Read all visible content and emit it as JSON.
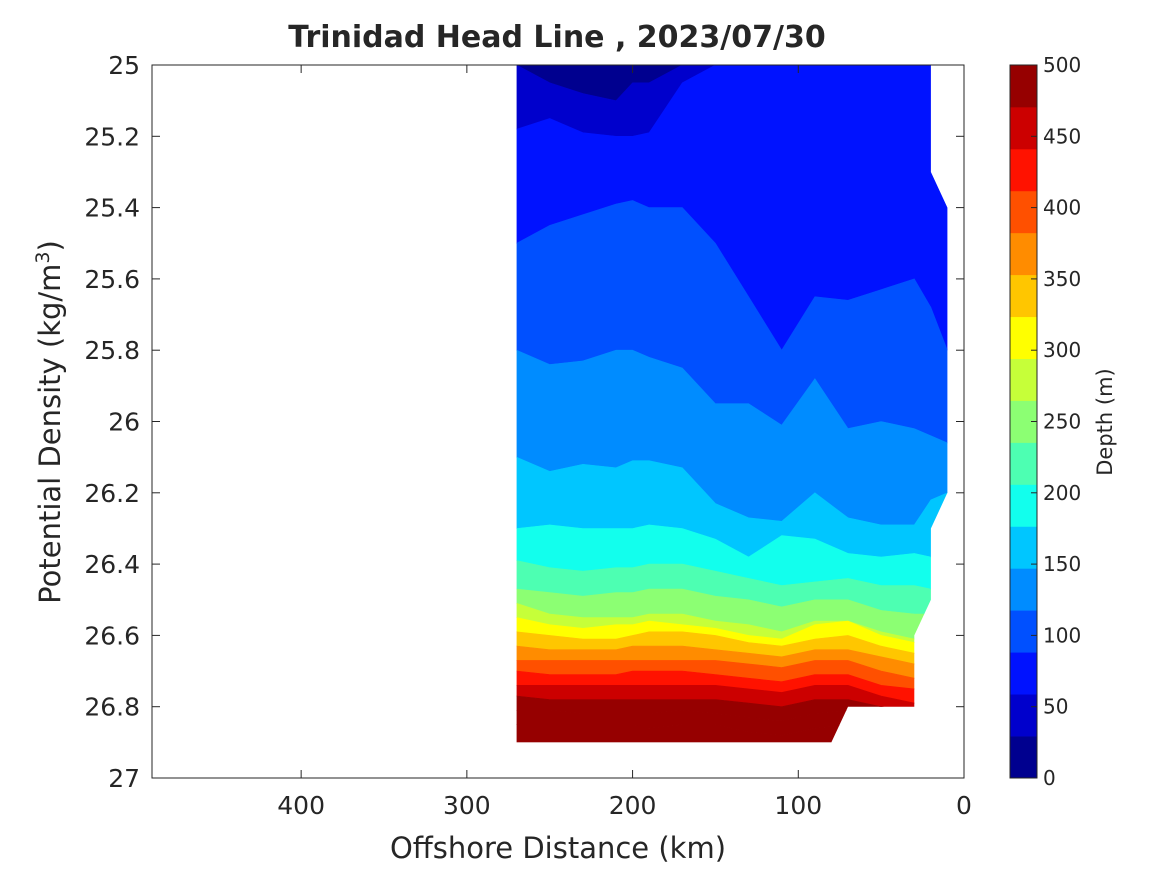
{
  "chart_data": {
    "type": "contourf",
    "title": "Trinidad Head Line , 2023/07/30",
    "xlabel": "Offshore Distance (km)",
    "ylabel_main": "Potential Density (kg/m",
    "ylabel_sup": "3",
    "ylabel_close": ")",
    "colorbar_label": "Depth (m)",
    "x_reversed": true,
    "y_reversed": true,
    "xlim": [
      0,
      490
    ],
    "ylim": [
      25,
      27
    ],
    "xticks": [
      {
        "value": 400,
        "label": "400"
      },
      {
        "value": 300,
        "label": "300"
      },
      {
        "value": 200,
        "label": "200"
      },
      {
        "value": 100,
        "label": "100"
      },
      {
        "value": 0,
        "label": "0"
      }
    ],
    "yticks": [
      {
        "value": 25,
        "label": "25"
      },
      {
        "value": 25.2,
        "label": "25.2"
      },
      {
        "value": 25.4,
        "label": "25.4"
      },
      {
        "value": 25.6,
        "label": "25.6"
      },
      {
        "value": 25.8,
        "label": "25.8"
      },
      {
        "value": 26,
        "label": "26"
      },
      {
        "value": 26.2,
        "label": "26.2"
      },
      {
        "value": 26.4,
        "label": "26.4"
      },
      {
        "value": 26.6,
        "label": "26.6"
      },
      {
        "value": 26.8,
        "label": "26.8"
      },
      {
        "value": 27,
        "label": "27"
      }
    ],
    "colorbar_range": [
      0,
      500
    ],
    "colorbar_ticks": [
      {
        "value": 0,
        "label": "0"
      },
      {
        "value": 50,
        "label": "50"
      },
      {
        "value": 100,
        "label": "100"
      },
      {
        "value": 150,
        "label": "150"
      },
      {
        "value": 200,
        "label": "200"
      },
      {
        "value": 250,
        "label": "250"
      },
      {
        "value": 300,
        "label": "300"
      },
      {
        "value": 350,
        "label": "350"
      },
      {
        "value": 400,
        "label": "400"
      },
      {
        "value": 450,
        "label": "450"
      },
      {
        "value": 500,
        "label": "500"
      }
    ],
    "colormap": [
      "#00008f",
      "#0000cc",
      "#0012ff",
      "#0050ff",
      "#008cff",
      "#00c6ff",
      "#12ffed",
      "#4dffb2",
      "#8cff73",
      "#c6ff39",
      "#ffff00",
      "#ffc600",
      "#ff8c00",
      "#ff5000",
      "#ff1200",
      "#cc0000",
      "#960000"
    ],
    "x": [
      270,
      250,
      230,
      210,
      200,
      190,
      170,
      150,
      130,
      110,
      90,
      70,
      50,
      30,
      20,
      10
    ],
    "level_boundaries": [
      {
        "level": 25,
        "y": [
          25.0,
          25.0,
          25.0,
          25.0,
          25.0,
          25.0,
          25.0,
          25.0,
          25.0,
          25.0,
          25.0,
          25.0,
          25.0,
          25.0,
          25.0,
          25.0
        ]
      },
      {
        "level": 50,
        "y": [
          25.0,
          25.05,
          25.08,
          25.1,
          25.05,
          25.05,
          25.0,
          25.0,
          25.0,
          25.0,
          25.0,
          25.0,
          25.0,
          25.0,
          25.0,
          25.0
        ]
      },
      {
        "level": 75,
        "y": [
          25.18,
          25.15,
          25.19,
          25.2,
          25.2,
          25.19,
          25.05,
          25.0,
          25.0,
          25.0,
          25.0,
          25.0,
          25.0,
          25.0,
          25.0,
          25.0
        ]
      },
      {
        "level": 100,
        "y": [
          25.5,
          25.45,
          25.42,
          25.39,
          25.38,
          25.4,
          25.4,
          25.5,
          25.65,
          25.8,
          25.65,
          25.66,
          25.63,
          25.6,
          25.68,
          25.8
        ]
      },
      {
        "level": 125,
        "y": [
          25.8,
          25.84,
          25.83,
          25.8,
          25.8,
          25.82,
          25.85,
          25.95,
          25.95,
          26.01,
          25.88,
          26.02,
          26.0,
          26.02,
          26.04,
          26.06
        ]
      },
      {
        "level": 150,
        "y": [
          26.1,
          26.14,
          26.12,
          26.13,
          26.11,
          26.11,
          26.13,
          26.23,
          26.27,
          26.28,
          26.2,
          26.27,
          26.29,
          26.29,
          26.22,
          26.2
        ]
      },
      {
        "level": 175,
        "y": [
          26.3,
          26.29,
          26.3,
          26.3,
          26.3,
          26.29,
          26.3,
          26.33,
          26.38,
          26.32,
          26.33,
          26.37,
          26.38,
          26.37,
          26.38,
          26.39
        ]
      },
      {
        "level": 200,
        "y": [
          26.39,
          26.41,
          26.42,
          26.41,
          26.41,
          26.4,
          26.4,
          26.42,
          26.44,
          26.46,
          26.45,
          26.44,
          26.46,
          26.46,
          26.47,
          26.48
        ]
      },
      {
        "level": 225,
        "y": [
          26.47,
          26.48,
          26.49,
          26.48,
          26.48,
          26.47,
          26.47,
          26.49,
          26.5,
          26.52,
          26.5,
          26.5,
          26.53,
          26.54,
          26.54,
          26.56
        ]
      },
      {
        "level": 250,
        "y": [
          26.51,
          26.54,
          26.55,
          26.55,
          26.55,
          26.54,
          26.54,
          26.56,
          26.57,
          26.59,
          26.56,
          26.56,
          26.59,
          26.61,
          26.61,
          26.62
        ]
      },
      {
        "level": 275,
        "y": [
          26.55,
          26.57,
          26.58,
          26.57,
          26.57,
          26.56,
          26.57,
          26.58,
          26.6,
          26.61,
          26.57,
          26.56,
          26.6,
          26.62,
          26.62,
          26.64
        ]
      },
      {
        "level": 300,
        "y": [
          26.59,
          26.6,
          26.61,
          26.61,
          26.6,
          26.59,
          26.59,
          26.6,
          26.62,
          26.63,
          26.61,
          26.6,
          26.63,
          26.65,
          26.65,
          26.67
        ]
      },
      {
        "level": 325,
        "y": [
          26.63,
          26.64,
          26.64,
          26.64,
          26.63,
          26.63,
          26.63,
          26.64,
          26.65,
          26.66,
          26.64,
          26.64,
          26.66,
          26.68,
          26.69,
          26.7
        ]
      },
      {
        "level": 350,
        "y": [
          26.67,
          26.67,
          26.67,
          26.67,
          26.67,
          26.67,
          26.67,
          26.67,
          26.68,
          26.69,
          26.67,
          26.67,
          26.7,
          26.72,
          26.72,
          26.73
        ]
      },
      {
        "level": 375,
        "y": [
          26.7,
          26.71,
          26.71,
          26.71,
          26.7,
          26.7,
          26.7,
          26.71,
          26.72,
          26.73,
          26.71,
          26.71,
          26.74,
          26.75,
          26.76,
          26.77
        ]
      },
      {
        "level": 400,
        "y": [
          26.74,
          26.74,
          26.74,
          26.74,
          26.74,
          26.74,
          26.74,
          26.74,
          26.75,
          26.76,
          26.74,
          26.74,
          26.77,
          26.79,
          26.8,
          26.8
        ]
      },
      {
        "level": 425,
        "y": [
          26.77,
          26.78,
          26.78,
          26.78,
          26.78,
          26.78,
          26.78,
          26.78,
          26.79,
          26.8,
          26.78,
          26.78,
          26.8,
          26.82,
          26.83,
          26.84
        ]
      },
      {
        "level": 450,
        "y": [
          26.81,
          26.81,
          26.82,
          26.82,
          26.82,
          26.82,
          26.81,
          26.82,
          26.83,
          26.84,
          26.82,
          26.81,
          26.84,
          26.85,
          26.86,
          26.87
        ]
      },
      {
        "level": 475,
        "y": [
          26.85,
          26.85,
          26.85,
          26.85,
          26.85,
          26.86,
          26.85,
          26.85,
          26.87,
          26.88,
          26.86,
          26.85,
          26.88,
          26.89,
          26.89,
          26.9
        ]
      },
      {
        "level": 500,
        "y": [
          26.9,
          26.9,
          26.9,
          26.9,
          26.9,
          26.9,
          26.9,
          26.9,
          26.9,
          26.9,
          26.9,
          26.9,
          26.9,
          26.9,
          26.9,
          26.9
        ]
      }
    ],
    "data_region": [
      [
        270,
        25.0
      ],
      [
        20,
        25.0
      ],
      [
        20,
        25.3
      ],
      [
        10,
        25.4
      ],
      [
        10,
        26.2
      ],
      [
        20,
        26.3
      ],
      [
        20,
        26.5
      ],
      [
        30,
        26.6
      ],
      [
        30,
        26.8
      ],
      [
        70,
        26.8
      ],
      [
        80,
        26.9
      ],
      [
        270,
        26.9
      ]
    ]
  }
}
